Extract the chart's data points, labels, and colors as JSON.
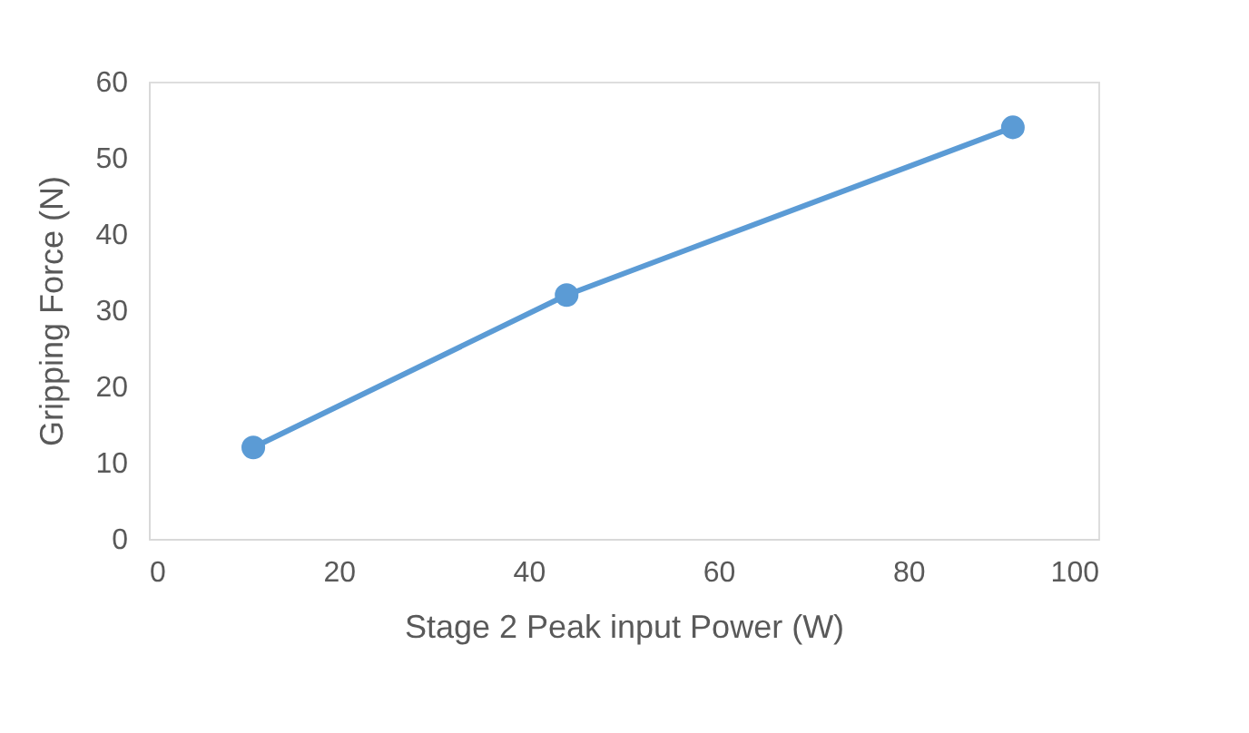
{
  "chart_data": {
    "type": "line",
    "xlabel": "Stage 2 Peak input Power (W)",
    "ylabel": "Gripping Force (N)",
    "x": [
      11,
      44,
      91
    ],
    "series": [
      {
        "color": "#5b9bd5",
        "values": [
          12,
          32,
          54
        ]
      }
    ],
    "xlim": [
      0,
      100
    ],
    "xticks": [
      0,
      20,
      40,
      60,
      80,
      100
    ],
    "ylim": [
      0,
      60
    ],
    "yticks": [
      0,
      10,
      20,
      30,
      40,
      50,
      60
    ],
    "grid": false,
    "legend": false,
    "marker": "circle",
    "line_style": "solid"
  }
}
